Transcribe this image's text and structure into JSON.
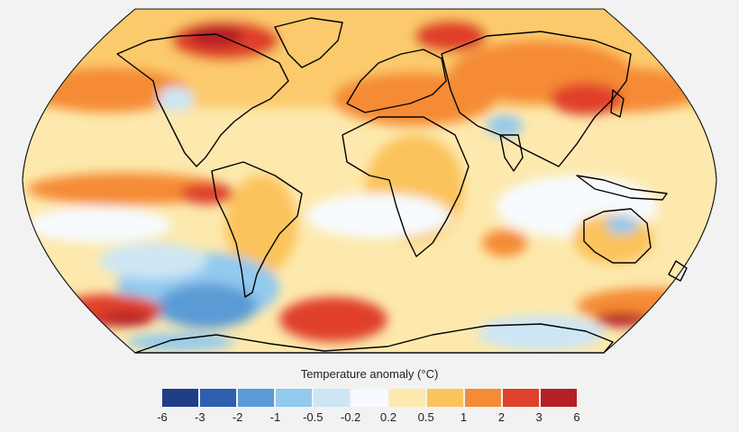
{
  "legend": {
    "title": "Temperature anomaly (°C)",
    "ticks": [
      "-6",
      "-3",
      "-2",
      "-1",
      "-0.5",
      "-0.2",
      "0.2",
      "0.5",
      "1",
      "2",
      "3",
      "6"
    ],
    "colors": [
      "#1f3e86",
      "#2c5fae",
      "#5a9bd6",
      "#92c9ee",
      "#cde6f5",
      "#f7fbff",
      "#fde9ad",
      "#fbc35c",
      "#f58b34",
      "#e0412b",
      "#b51f26"
    ]
  },
  "map": {
    "projection": "robinson-like",
    "ocean_base": "#fde9ad",
    "coastline_color": "#000000"
  }
}
